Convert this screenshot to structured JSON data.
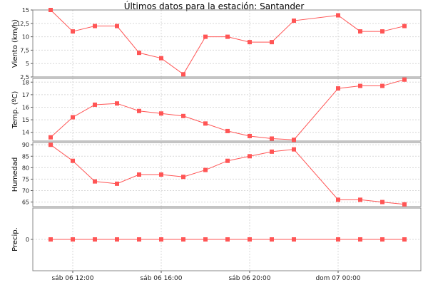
{
  "title": "Últimos datos para la estación: Santander",
  "colors": {
    "series": "#ff5555",
    "grid": "#d8d8d8",
    "frame": "#888888"
  },
  "chart_data": {
    "type": "line",
    "shared_x": true,
    "x_tick_labels": [
      "sáb 06 12:00",
      "sáb 06 16:00",
      "sáb 06 20:00",
      "dom 07 00:00"
    ],
    "x": [
      "sáb 06 11:00",
      "sáb 06 12:00",
      "sáb 06 13:00",
      "sáb 06 14:00",
      "sáb 06 15:00",
      "sáb 06 16:00",
      "sáb 06 17:00",
      "sáb 06 18:00",
      "sáb 06 19:00",
      "sáb 06 20:00",
      "sáb 06 21:00",
      "sáb 06 22:00",
      "dom 07 00:00",
      "dom 07 01:00",
      "dom 07 02:00",
      "dom 07 03:00"
    ],
    "grid": true,
    "legend": "none",
    "panels": [
      {
        "ylabel": "Viento (km/h)",
        "ylim": [
          2.5,
          15
        ],
        "yticks": [
          2.5,
          5,
          7.5,
          10,
          12.5,
          15
        ],
        "ytick_labels": [
          "2,5",
          "5",
          "7,5",
          "10",
          "12,5",
          "15"
        ],
        "values": [
          15,
          11,
          12,
          12,
          7,
          6,
          3,
          10,
          10,
          9,
          9,
          13,
          14,
          11,
          11,
          12
        ]
      },
      {
        "ylabel": "Temp. (ºC)",
        "ylim": [
          13.3,
          18.3
        ],
        "yticks": [
          14,
          15,
          16,
          17,
          18
        ],
        "ytick_labels": [
          "14",
          "15",
          "16",
          "17",
          "18"
        ],
        "values": [
          13.6,
          15.2,
          16.2,
          16.3,
          15.7,
          15.5,
          15.3,
          14.7,
          14.1,
          13.7,
          13.5,
          13.4,
          17.5,
          17.7,
          17.7,
          18.2
        ]
      },
      {
        "ylabel": "Humedad",
        "ylim": [
          63,
          91
        ],
        "yticks": [
          65,
          70,
          75,
          80,
          85,
          90
        ],
        "ytick_labels": [
          "65",
          "70",
          "75",
          "80",
          "85",
          "90"
        ],
        "values": [
          90,
          83,
          74,
          73,
          77,
          77,
          76,
          79,
          83,
          85,
          87,
          88,
          66,
          66,
          65,
          64
        ]
      },
      {
        "ylabel": "Precip.",
        "ylim": [
          -1,
          1
        ],
        "yticks": [
          0
        ],
        "ytick_labels": [
          "0"
        ],
        "values": [
          0,
          0,
          0,
          0,
          0,
          0,
          0,
          0,
          0,
          0,
          0,
          0,
          0,
          0,
          0,
          0
        ]
      }
    ]
  }
}
